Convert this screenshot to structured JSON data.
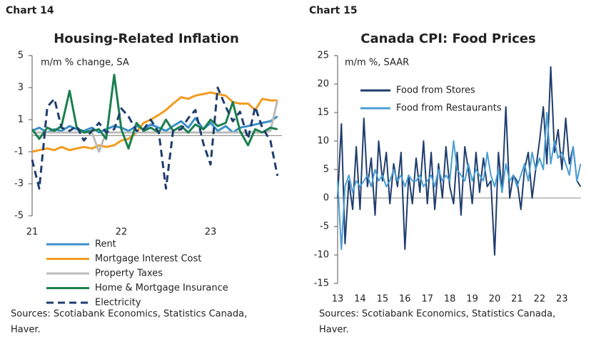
{
  "chart_data": [
    {
      "type": "line",
      "label": "Chart 14",
      "title": "Housing-Related Inflation",
      "annotation": "m/m % change, SA",
      "sources": [
        "Sources: Scotiabank Economics, Statistics Canada,",
        "Haver."
      ],
      "x": [
        21,
        21.08,
        21.17,
        21.25,
        21.33,
        21.42,
        21.5,
        21.58,
        21.67,
        21.75,
        21.83,
        21.92,
        22,
        22.08,
        22.17,
        22.25,
        22.33,
        22.42,
        22.5,
        22.58,
        22.67,
        22.75,
        22.83,
        22.92,
        23,
        23.08,
        23.17,
        23.25,
        23.33,
        23.42,
        23.5,
        23.58,
        23.67,
        23.75
      ],
      "xlim": [
        21,
        23.8
      ],
      "xticks": [
        21,
        22,
        23
      ],
      "ylim": [
        -5,
        5
      ],
      "yticks": [
        -5,
        -3,
        -1,
        1,
        3,
        5
      ],
      "zero_line": true,
      "legend": "below",
      "series": [
        {
          "name": "Rent",
          "color": "#3a8fc8",
          "values": [
            0.3,
            0.5,
            0.2,
            0.4,
            0.3,
            0.6,
            0.4,
            0.3,
            0.5,
            0.2,
            0.4,
            0.6,
            0.5,
            0.3,
            0.6,
            0.4,
            0.7,
            0.5,
            0.3,
            0.6,
            0.9,
            0.5,
            1.1,
            0.4,
            0.8,
            0.3,
            0.6,
            0.2,
            0.5,
            0.6,
            0.7,
            0.8,
            0.9,
            1.2
          ]
        },
        {
          "name": "Mortgage Interest Cost",
          "color": "#f39c1f",
          "values": [
            -1,
            -0.9,
            -0.8,
            -0.9,
            -0.7,
            -0.9,
            -0.8,
            -0.7,
            -0.8,
            -0.6,
            -0.7,
            -0.6,
            -0.3,
            -0.2,
            0.2,
            0.8,
            1.0,
            1.3,
            1.6,
            2.0,
            2.4,
            2.3,
            2.5,
            2.6,
            2.7,
            2.6,
            2.5,
            2.1,
            2.0,
            2.0,
            1.6,
            2.3,
            2.2,
            2.2
          ]
        },
        {
          "name": "Property Taxes",
          "color": "#bbbbbb",
          "values": [
            0.2,
            0.2,
            0.2,
            0.2,
            0.2,
            0.2,
            0.2,
            0.2,
            0.2,
            -1.0,
            0.2,
            0.2,
            0.2,
            0.2,
            0.2,
            0.2,
            0.2,
            0.2,
            0.2,
            0.2,
            0.2,
            0.2,
            0.2,
            0.2,
            0.2,
            0.2,
            0.2,
            0.2,
            0.2,
            0.2,
            0.2,
            0.2,
            0.3,
            2.2
          ]
        },
        {
          "name": "Home & Mortgage Insurance",
          "color": "#1b7f4f",
          "values": [
            0.4,
            -0.2,
            0.5,
            0.3,
            0.6,
            2.8,
            0.5,
            0.2,
            0.3,
            0.4,
            -0.2,
            3.8,
            0.4,
            -0.8,
            0.8,
            0.3,
            0.5,
            0.2,
            1.0,
            0.3,
            0.6,
            0.2,
            0.7,
            0.4,
            1.0,
            0.6,
            0.8,
            2.1,
            0.3,
            -0.6,
            0.4,
            0.2,
            0.5,
            0.4
          ]
        },
        {
          "name": "Electricity",
          "color": "#1f3d6d",
          "style": "dashed",
          "values": [
            -1.5,
            -3.3,
            1.8,
            2.3,
            0.5,
            0.3,
            0.6,
            -0.3,
            0.3,
            0.8,
            0.2,
            0.4,
            1.7,
            1.2,
            0.3,
            0.4,
            1.0,
            0.2,
            -3.3,
            0.3,
            0.4,
            1.1,
            1.6,
            -0.5,
            -1.8,
            3.0,
            1.8,
            0.9,
            1.5,
            -0.2,
            1.8,
            0.5,
            -0.3,
            -2.5
          ]
        }
      ]
    },
    {
      "type": "line",
      "label": "Chart 15",
      "title": "Canada CPI: Food Prices",
      "annotation": "m/m %, SAAR",
      "sources": [
        "Sources: Scotiabank Economics, Statistics Canada,",
        "Haver."
      ],
      "x": [
        13,
        13.17,
        13.33,
        13.5,
        13.67,
        13.83,
        14,
        14.17,
        14.33,
        14.5,
        14.67,
        14.83,
        15,
        15.17,
        15.33,
        15.5,
        15.67,
        15.83,
        16,
        16.17,
        16.33,
        16.5,
        16.67,
        16.83,
        17,
        17.17,
        17.33,
        17.5,
        17.67,
        17.83,
        18,
        18.17,
        18.33,
        18.5,
        18.67,
        18.83,
        19,
        19.17,
        19.33,
        19.5,
        19.67,
        19.83,
        20,
        20.17,
        20.33,
        20.5,
        20.67,
        20.83,
        21,
        21.17,
        21.33,
        21.5,
        21.67,
        21.83,
        22,
        22.17,
        22.33,
        22.5,
        22.67,
        22.83,
        23,
        23.17,
        23.33,
        23.5,
        23.67,
        23.83
      ],
      "xlim": [
        13,
        23.85
      ],
      "xticks": [
        13,
        14,
        15,
        16,
        17,
        18,
        19,
        20,
        21,
        22,
        23
      ],
      "ylim": [
        -15,
        25
      ],
      "yticks": [
        -15,
        -10,
        -5,
        0,
        5,
        10,
        15,
        20,
        25
      ],
      "zero_line": true,
      "legend": "upper left",
      "series": [
        {
          "name": "Food from Stores",
          "color": "#1f3d6d",
          "values": [
            0,
            13,
            -8,
            3,
            -2,
            9,
            -2,
            14,
            2,
            7,
            -3,
            10,
            3,
            8,
            -1,
            6,
            2,
            8,
            -9,
            4,
            -1,
            7,
            1,
            10,
            -1,
            8,
            -2,
            6,
            0,
            9,
            2,
            -1,
            8,
            -3,
            9,
            5,
            -1,
            8,
            1,
            7,
            2,
            3,
            -10,
            8,
            1,
            16,
            0,
            4,
            3,
            -2,
            5,
            8,
            0,
            5,
            10,
            16,
            6,
            23,
            8,
            12,
            5,
            14,
            6,
            9,
            3,
            2
          ]
        },
        {
          "name": "Food from Restaurants",
          "color": "#4a9fd4",
          "values": [
            3,
            -9,
            2,
            4,
            1,
            3,
            2,
            3,
            4,
            2,
            5,
            3,
            4,
            2,
            3,
            5,
            3,
            4,
            2,
            4,
            3,
            3,
            4,
            2,
            3,
            4,
            2,
            5,
            3,
            4,
            3,
            10,
            5,
            4,
            3,
            6,
            3,
            5,
            4,
            3,
            8,
            4,
            2,
            5,
            1,
            6,
            3,
            4,
            2,
            4,
            6,
            3,
            8,
            5,
            7,
            5,
            15,
            6,
            10,
            7,
            8,
            6,
            4,
            9,
            3,
            6
          ]
        }
      ]
    }
  ]
}
